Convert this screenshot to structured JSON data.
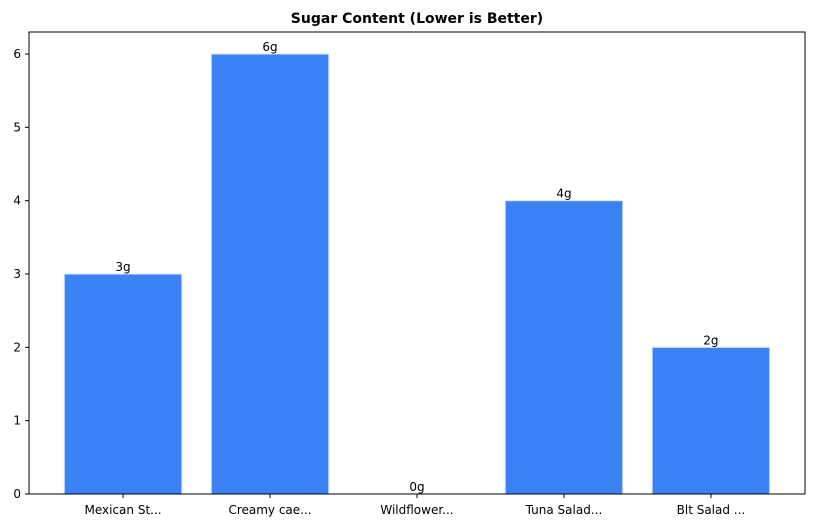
{
  "chart_data": {
    "type": "bar",
    "title": "Sugar Content (Lower is Better)",
    "xlabel": "",
    "ylabel": "",
    "categories": [
      "Mexican St...",
      "Creamy cae...",
      "Wildflower...",
      "Tuna Salad...",
      "Blt Salad ..."
    ],
    "values": [
      3,
      6,
      0,
      4,
      2
    ],
    "data_labels": [
      "3g",
      "6g",
      "0g",
      "4g",
      "2g"
    ],
    "ylim": [
      0,
      6.3
    ],
    "yticks": [
      0,
      1,
      2,
      3,
      4,
      5,
      6
    ],
    "grid": false,
    "bar_color": "#3b82f6",
    "bar_edge_color": "#dbe8fd"
  }
}
